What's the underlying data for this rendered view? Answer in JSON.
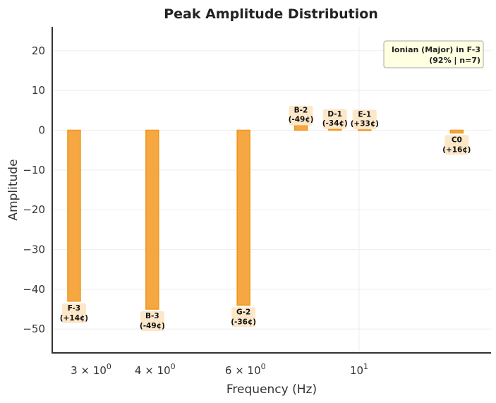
{
  "chart_data": {
    "type": "bar",
    "title": "Peak Amplitude Distribution",
    "xlabel": "Frequency (Hz)",
    "ylabel": "Amplitude",
    "xscale": "log",
    "ylim": [
      -56,
      26
    ],
    "grid": true,
    "bar_color": "#f5a742",
    "bar_edge_color": "#f0961e",
    "label_bg_color": "#fbe3c0",
    "yticks": [
      {
        "value": 20,
        "label": "20"
      },
      {
        "value": 10,
        "label": "10"
      },
      {
        "value": 0,
        "label": "0"
      },
      {
        "value": -10,
        "label": "−10"
      },
      {
        "value": -20,
        "label": "−20"
      },
      {
        "value": -30,
        "label": "−30"
      },
      {
        "value": -40,
        "label": "−40"
      },
      {
        "value": -50,
        "label": "−50"
      }
    ],
    "xticks": [
      {
        "value": 3,
        "base": "3 × 10",
        "exp": "0"
      },
      {
        "value": 4,
        "base": "4 × 10",
        "exp": "0"
      },
      {
        "value": 6,
        "base": "6 × 10",
        "exp": "0"
      },
      {
        "value": 10,
        "base": "10",
        "exp": "1"
      }
    ],
    "bars": [
      {
        "x": 2.78,
        "value": -43,
        "note": "F-3",
        "cents": "(+14¢)"
      },
      {
        "x": 3.95,
        "value": -45,
        "note": "B-3",
        "cents": "(-49¢)"
      },
      {
        "x": 5.95,
        "value": -44,
        "note": "G-2",
        "cents": "(-36¢)"
      },
      {
        "x": 7.7,
        "value": 1.2,
        "note": "B-2",
        "cents": "(-49¢)"
      },
      {
        "x": 8.97,
        "value": 0.3,
        "note": "D-1",
        "cents": "(-34¢)"
      },
      {
        "x": 10.25,
        "value": 0.2,
        "note": "E-1",
        "cents": "(+33¢)"
      },
      {
        "x": 15.5,
        "value": -0.7,
        "note": "C0",
        "cents": "(+16¢)"
      }
    ],
    "legend": {
      "line1": "Ionian (Major) in F-3",
      "line2": "(92% | n=7)",
      "placement": "top-right"
    }
  }
}
